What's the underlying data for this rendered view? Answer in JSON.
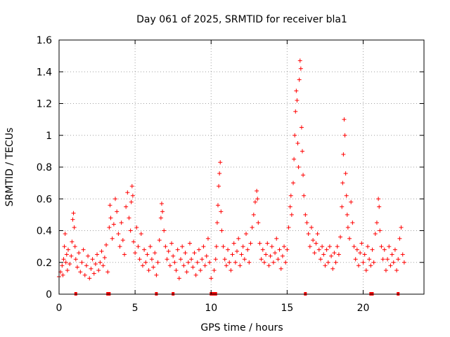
{
  "chart_data": {
    "type": "scatter",
    "title": "Day 061 of 2025, SRMTID for receiver bla1",
    "xlabel": "GPS time / hours",
    "ylabel": "SRMTID / TECUs",
    "xlim": [
      0,
      24
    ],
    "ylim": [
      0,
      1.6
    ],
    "xticks": [
      0,
      5,
      10,
      15,
      20
    ],
    "xtick_labels": [
      "0",
      "5",
      "10",
      "15",
      "20"
    ],
    "yticks": [
      0,
      0.2,
      0.4,
      0.6,
      0.8,
      1.0,
      1.2,
      1.4,
      1.6
    ],
    "ytick_labels": [
      "0",
      "0.2",
      "0.4",
      "0.6",
      "0.8",
      "1",
      "1.2",
      "1.4",
      "1.6"
    ],
    "grid": true,
    "marker": "+",
    "color": "#ff0000",
    "series": [
      {
        "name": "SRMTID",
        "points": [
          [
            0.0,
            0.11
          ],
          [
            0.1,
            0.14
          ],
          [
            0.2,
            0.18
          ],
          [
            0.25,
            0.12
          ],
          [
            0.3,
            0.22
          ],
          [
            0.35,
            0.3
          ],
          [
            0.4,
            0.38
          ],
          [
            0.45,
            0.2
          ],
          [
            0.5,
            0.25
          ],
          [
            0.55,
            0.15
          ],
          [
            0.6,
            0.28
          ],
          [
            0.7,
            0.19
          ],
          [
            0.8,
            0.24
          ],
          [
            0.85,
            0.33
          ],
          [
            0.9,
            0.47
          ],
          [
            0.95,
            0.51
          ],
          [
            1.0,
            0.42
          ],
          [
            1.05,
            0.3
          ],
          [
            1.1,
            0.22
          ],
          [
            1.2,
            0.17
          ],
          [
            1.3,
            0.26
          ],
          [
            1.4,
            0.14
          ],
          [
            1.5,
            0.2
          ],
          [
            1.6,
            0.28
          ],
          [
            1.7,
            0.12
          ],
          [
            1.8,
            0.18
          ],
          [
            1.9,
            0.24
          ],
          [
            2.0,
            0.1
          ],
          [
            2.1,
            0.16
          ],
          [
            2.2,
            0.22
          ],
          [
            2.3,
            0.13
          ],
          [
            2.4,
            0.19
          ],
          [
            2.5,
            0.25
          ],
          [
            2.6,
            0.15
          ],
          [
            2.7,
            0.2
          ],
          [
            2.8,
            0.27
          ],
          [
            2.9,
            0.18
          ],
          [
            3.0,
            0.23
          ],
          [
            3.1,
            0.31
          ],
          [
            3.2,
            0.14
          ],
          [
            3.3,
            0.42
          ],
          [
            3.35,
            0.56
          ],
          [
            3.4,
            0.48
          ],
          [
            3.5,
            0.35
          ],
          [
            3.6,
            0.44
          ],
          [
            3.7,
            0.6
          ],
          [
            3.8,
            0.52
          ],
          [
            3.9,
            0.38
          ],
          [
            4.0,
            0.3
          ],
          [
            4.1,
            0.45
          ],
          [
            4.2,
            0.34
          ],
          [
            4.3,
            0.25
          ],
          [
            4.4,
            0.55
          ],
          [
            4.5,
            0.64
          ],
          [
            4.6,
            0.48
          ],
          [
            4.7,
            0.4
          ],
          [
            4.75,
            0.58
          ],
          [
            4.8,
            0.68
          ],
          [
            4.85,
            0.62
          ],
          [
            4.9,
            0.33
          ],
          [
            5.0,
            0.26
          ],
          [
            5.1,
            0.42
          ],
          [
            5.2,
            0.3
          ],
          [
            5.3,
            0.22
          ],
          [
            5.4,
            0.38
          ],
          [
            5.5,
            0.18
          ],
          [
            5.6,
            0.28
          ],
          [
            5.7,
            0.2
          ],
          [
            5.8,
            0.25
          ],
          [
            5.9,
            0.15
          ],
          [
            6.0,
            0.3
          ],
          [
            6.1,
            0.22
          ],
          [
            6.2,
            0.17
          ],
          [
            6.3,
            0.26
          ],
          [
            6.4,
            0.12
          ],
          [
            6.5,
            0.2
          ],
          [
            6.6,
            0.34
          ],
          [
            6.7,
            0.48
          ],
          [
            6.75,
            0.57
          ],
          [
            6.8,
            0.52
          ],
          [
            6.9,
            0.4
          ],
          [
            7.0,
            0.3
          ],
          [
            7.1,
            0.22
          ],
          [
            7.2,
            0.27
          ],
          [
            7.3,
            0.18
          ],
          [
            7.4,
            0.32
          ],
          [
            7.5,
            0.24
          ],
          [
            7.6,
            0.2
          ],
          [
            7.7,
            0.15
          ],
          [
            7.8,
            0.28
          ],
          [
            7.9,
            0.1
          ],
          [
            8.0,
            0.22
          ],
          [
            8.1,
            0.3
          ],
          [
            8.2,
            0.18
          ],
          [
            8.3,
            0.26
          ],
          [
            8.4,
            0.14
          ],
          [
            8.5,
            0.2
          ],
          [
            8.6,
            0.32
          ],
          [
            8.7,
            0.22
          ],
          [
            8.8,
            0.17
          ],
          [
            8.9,
            0.26
          ],
          [
            9.0,
            0.12
          ],
          [
            9.1,
            0.2
          ],
          [
            9.2,
            0.28
          ],
          [
            9.3,
            0.15
          ],
          [
            9.4,
            0.22
          ],
          [
            9.5,
            0.3
          ],
          [
            9.6,
            0.18
          ],
          [
            9.7,
            0.24
          ],
          [
            9.8,
            0.35
          ],
          [
            9.9,
            0.2
          ],
          [
            10.0,
            0.1
          ],
          [
            10.2,
            0.15
          ],
          [
            10.3,
            0.22
          ],
          [
            10.35,
            0.3
          ],
          [
            10.4,
            0.45
          ],
          [
            10.45,
            0.56
          ],
          [
            10.5,
            0.68
          ],
          [
            10.55,
            0.76
          ],
          [
            10.6,
            0.83
          ],
          [
            10.65,
            0.52
          ],
          [
            10.7,
            0.4
          ],
          [
            10.8,
            0.3
          ],
          [
            10.9,
            0.22
          ],
          [
            11.0,
            0.18
          ],
          [
            11.1,
            0.28
          ],
          [
            11.2,
            0.2
          ],
          [
            11.3,
            0.15
          ],
          [
            11.4,
            0.25
          ],
          [
            11.5,
            0.32
          ],
          [
            11.6,
            0.2
          ],
          [
            11.7,
            0.27
          ],
          [
            11.8,
            0.35
          ],
          [
            11.9,
            0.18
          ],
          [
            12.0,
            0.25
          ],
          [
            12.1,
            0.3
          ],
          [
            12.2,
            0.22
          ],
          [
            12.3,
            0.38
          ],
          [
            12.4,
            0.28
          ],
          [
            12.5,
            0.2
          ],
          [
            12.6,
            0.32
          ],
          [
            12.7,
            0.42
          ],
          [
            12.8,
            0.5
          ],
          [
            12.9,
            0.58
          ],
          [
            13.0,
            0.65
          ],
          [
            13.05,
            0.6
          ],
          [
            13.1,
            0.45
          ],
          [
            13.2,
            0.32
          ],
          [
            13.3,
            0.22
          ],
          [
            13.4,
            0.28
          ],
          [
            13.5,
            0.2
          ],
          [
            13.6,
            0.25
          ],
          [
            13.7,
            0.32
          ],
          [
            13.8,
            0.18
          ],
          [
            13.9,
            0.24
          ],
          [
            14.0,
            0.3
          ],
          [
            14.1,
            0.2
          ],
          [
            14.2,
            0.26
          ],
          [
            14.3,
            0.35
          ],
          [
            14.4,
            0.22
          ],
          [
            14.5,
            0.28
          ],
          [
            14.6,
            0.16
          ],
          [
            14.7,
            0.24
          ],
          [
            14.8,
            0.3
          ],
          [
            14.9,
            0.2
          ],
          [
            15.0,
            0.28
          ],
          [
            15.1,
            0.42
          ],
          [
            15.2,
            0.55
          ],
          [
            15.25,
            0.62
          ],
          [
            15.3,
            0.5
          ],
          [
            15.4,
            0.7
          ],
          [
            15.45,
            0.85
          ],
          [
            15.5,
            1.0
          ],
          [
            15.55,
            1.15
          ],
          [
            15.6,
            1.28
          ],
          [
            15.65,
            1.22
          ],
          [
            15.7,
            0.95
          ],
          [
            15.75,
            0.8
          ],
          [
            15.8,
            1.35
          ],
          [
            15.85,
            1.47
          ],
          [
            15.9,
            1.42
          ],
          [
            15.95,
            1.05
          ],
          [
            16.0,
            0.9
          ],
          [
            16.05,
            0.75
          ],
          [
            16.1,
            0.62
          ],
          [
            16.2,
            0.5
          ],
          [
            16.3,
            0.45
          ],
          [
            16.4,
            0.38
          ],
          [
            16.5,
            0.3
          ],
          [
            16.6,
            0.42
          ],
          [
            16.7,
            0.34
          ],
          [
            16.8,
            0.26
          ],
          [
            16.9,
            0.32
          ],
          [
            17.0,
            0.38
          ],
          [
            17.1,
            0.28
          ],
          [
            17.2,
            0.22
          ],
          [
            17.3,
            0.3
          ],
          [
            17.4,
            0.25
          ],
          [
            17.5,
            0.18
          ],
          [
            17.6,
            0.28
          ],
          [
            17.7,
            0.2
          ],
          [
            17.8,
            0.3
          ],
          [
            17.9,
            0.24
          ],
          [
            18.0,
            0.16
          ],
          [
            18.1,
            0.26
          ],
          [
            18.2,
            0.2
          ],
          [
            18.3,
            0.3
          ],
          [
            18.4,
            0.25
          ],
          [
            18.5,
            0.36
          ],
          [
            18.6,
            0.55
          ],
          [
            18.65,
            0.7
          ],
          [
            18.7,
            0.88
          ],
          [
            18.75,
            1.1
          ],
          [
            18.8,
            1.0
          ],
          [
            18.85,
            0.76
          ],
          [
            18.9,
            0.62
          ],
          [
            18.95,
            0.5
          ],
          [
            19.0,
            0.42
          ],
          [
            19.1,
            0.35
          ],
          [
            19.2,
            0.58
          ],
          [
            19.3,
            0.45
          ],
          [
            19.4,
            0.3
          ],
          [
            19.5,
            0.22
          ],
          [
            19.6,
            0.28
          ],
          [
            19.7,
            0.18
          ],
          [
            19.8,
            0.26
          ],
          [
            19.9,
            0.32
          ],
          [
            20.0,
            0.2
          ],
          [
            20.1,
            0.25
          ],
          [
            20.2,
            0.15
          ],
          [
            20.3,
            0.3
          ],
          [
            20.4,
            0.22
          ],
          [
            20.5,
            0.18
          ],
          [
            20.6,
            0.28
          ],
          [
            20.7,
            0.2
          ],
          [
            20.8,
            0.38
          ],
          [
            20.9,
            0.45
          ],
          [
            21.0,
            0.6
          ],
          [
            21.05,
            0.55
          ],
          [
            21.1,
            0.4
          ],
          [
            21.2,
            0.3
          ],
          [
            21.3,
            0.22
          ],
          [
            21.4,
            0.28
          ],
          [
            21.5,
            0.15
          ],
          [
            21.6,
            0.22
          ],
          [
            21.7,
            0.3
          ],
          [
            21.8,
            0.18
          ],
          [
            21.9,
            0.25
          ],
          [
            22.0,
            0.2
          ],
          [
            22.1,
            0.28
          ],
          [
            22.2,
            0.15
          ],
          [
            22.3,
            0.22
          ],
          [
            22.4,
            0.35
          ],
          [
            22.5,
            0.42
          ],
          [
            22.6,
            0.25
          ],
          [
            22.7,
            0.2
          ]
        ]
      }
    ],
    "axis_markers": [
      1.1,
      3.2,
      3.3,
      6.4,
      7.5,
      10.0,
      10.1,
      10.2,
      10.3,
      16.2,
      20.5,
      20.6,
      22.3
    ]
  }
}
